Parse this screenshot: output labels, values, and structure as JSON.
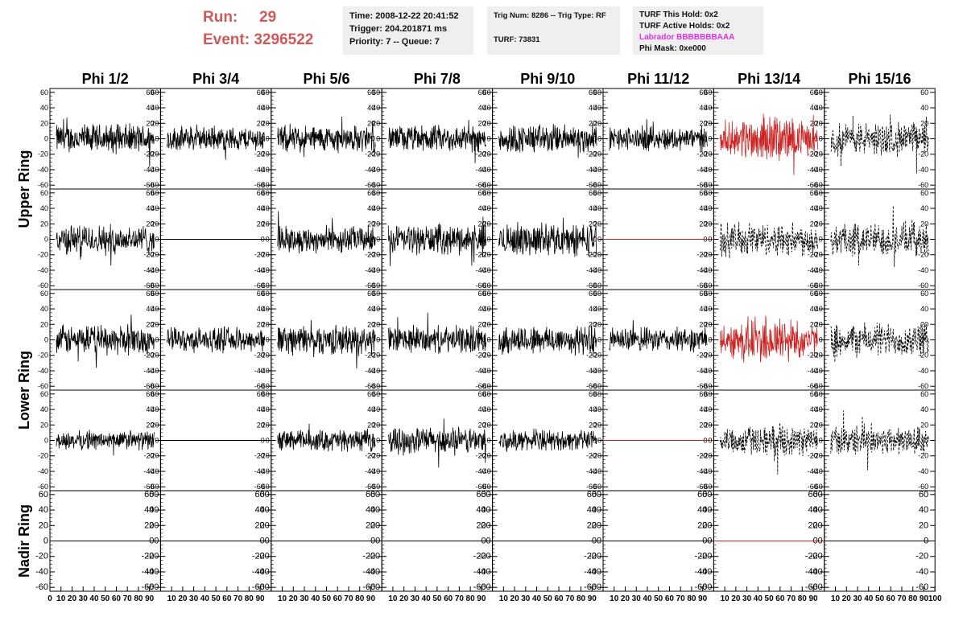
{
  "header": {
    "run_label": "Run:",
    "run_value": "29",
    "event_label": "Event:",
    "event_value": "3296522",
    "time": "Time: 2008-12-22 20:41:52",
    "trigger": "Trigger: 204.201871 ms",
    "priority": "Priority: 7 -- Queue: 7",
    "trig_num": "Trig Num: 8286 -- Trig Type: RF",
    "turf": "TURF: 73831",
    "turf_this_hold": "TURF This Hold: 0x2",
    "turf_active_holds": "TURF Active Holds: 0x2",
    "labrador": "Labrador BBBBBBBAAA",
    "phi_mask": "Phi Mask: 0xe000"
  },
  "colors": {
    "red_text": "#cf5a5a",
    "magenta": "#e030e0",
    "trace_black": "#000000",
    "trace_red": "#cc2222"
  },
  "chart_data": {
    "type": "line",
    "columns": [
      "Phi 1/2",
      "Phi 3/4",
      "Phi 5/6",
      "Phi 7/8",
      "Phi 9/10",
      "Phi 11/12",
      "Phi 13/14",
      "Phi 15/16"
    ],
    "ring_labels": [
      "Upper Ring",
      "Lower Ring",
      "Nadir Ring"
    ],
    "ylim": [
      -65,
      65
    ],
    "y_ticks": [
      -60,
      -40,
      -20,
      0,
      20,
      40,
      60
    ],
    "xlim": [
      0,
      100
    ],
    "x_tick_labels": [
      "0",
      "10",
      "20",
      "30",
      "40",
      "50",
      "60",
      "70",
      "80",
      "90",
      "100"
    ],
    "panel_rows": [
      {
        "ring": "Upper",
        "styles": [
          "noise",
          "noise",
          "noise",
          "noise",
          "noise",
          "noise",
          "red",
          "dashed"
        ],
        "amplitudes": [
          22,
          18,
          20,
          20,
          22,
          18,
          30,
          25
        ]
      },
      {
        "ring": "Upper",
        "styles": [
          "noise",
          "flat",
          "noise",
          "noise",
          "noise",
          "flatred",
          "dashed",
          "dashed"
        ],
        "amplitudes": [
          22,
          0,
          20,
          22,
          24,
          0,
          25,
          25
        ]
      },
      {
        "ring": "Lower",
        "styles": [
          "noise",
          "noise",
          "noise",
          "noise",
          "noise",
          "noise",
          "red",
          "dashed"
        ],
        "amplitudes": [
          22,
          18,
          22,
          20,
          22,
          18,
          32,
          25
        ]
      },
      {
        "ring": "Lower",
        "styles": [
          "noise",
          "flat",
          "noise",
          "noise",
          "noise",
          "flatred",
          "dashed",
          "dashed"
        ],
        "amplitudes": [
          14,
          0,
          16,
          20,
          15,
          0,
          22,
          22
        ]
      },
      {
        "ring": "Nadir",
        "styles": [
          "flat",
          "flat",
          "flat",
          "flat",
          "flat",
          "flat",
          "flatred",
          "flat"
        ],
        "amplitudes": [
          0,
          0,
          0,
          0,
          0,
          0,
          0,
          0
        ]
      }
    ]
  }
}
